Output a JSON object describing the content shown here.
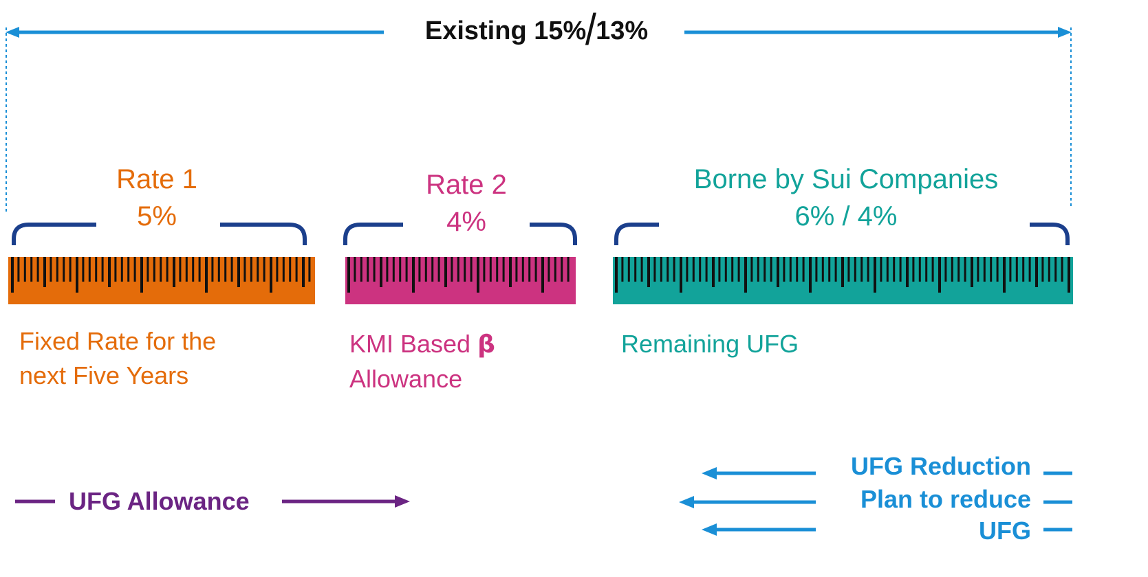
{
  "colors": {
    "arrow_blue": "#1a8fd6",
    "bracket_navy": "#1b3f8c",
    "rate1": "#e46c0a",
    "rate2": "#cc3380",
    "sui": "#12a39a",
    "allowance_purple": "#6b2483",
    "tick": "#111111"
  },
  "header": {
    "label_prefix": "Existing 15%",
    "label_suffix": "13%"
  },
  "segments": [
    {
      "id": "rate1",
      "title": "Rate 1",
      "value": "5%",
      "desc_line1": "Fixed Rate for the",
      "desc_line2": "next Five Years"
    },
    {
      "id": "rate2",
      "title": "Rate 2",
      "value": "4%",
      "desc_line1": "KMI Based",
      "desc_symbol": "β",
      "desc_line2": "Allowance"
    },
    {
      "id": "sui",
      "title": "Borne by Sui Companies",
      "value": "6% / 4%",
      "desc_line1": "Remaining UFG"
    }
  ],
  "allowance": {
    "label": "UFG Allowance"
  },
  "reduction": {
    "line1": "UFG Reduction",
    "line2": "Plan to reduce",
    "line3": "UFG"
  }
}
